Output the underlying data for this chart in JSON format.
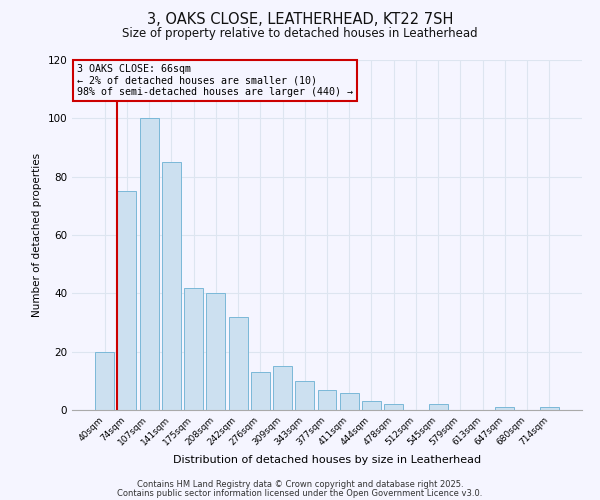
{
  "title": "3, OAKS CLOSE, LEATHERHEAD, KT22 7SH",
  "subtitle": "Size of property relative to detached houses in Leatherhead",
  "xlabel": "Distribution of detached houses by size in Leatherhead",
  "ylabel": "Number of detached properties",
  "bar_labels": [
    "40sqm",
    "74sqm",
    "107sqm",
    "141sqm",
    "175sqm",
    "208sqm",
    "242sqm",
    "276sqm",
    "309sqm",
    "343sqm",
    "377sqm",
    "411sqm",
    "444sqm",
    "478sqm",
    "512sqm",
    "545sqm",
    "579sqm",
    "613sqm",
    "647sqm",
    "680sqm",
    "714sqm"
  ],
  "bar_values": [
    20,
    75,
    100,
    85,
    42,
    40,
    32,
    13,
    15,
    10,
    7,
    6,
    3,
    2,
    0,
    2,
    0,
    0,
    1,
    0,
    1
  ],
  "bar_color": "#cce0f0",
  "bar_edgecolor": "#7ab8d8",
  "background_color": "#f5f5ff",
  "grid_color": "#dde5f0",
  "annotation_title": "3 OAKS CLOSE: 66sqm",
  "annotation_line1": "← 2% of detached houses are smaller (10)",
  "annotation_line2": "98% of semi-detached houses are larger (440) →",
  "annotation_box_edgecolor": "#cc0000",
  "vline_color": "#cc0000",
  "footer1": "Contains HM Land Registry data © Crown copyright and database right 2025.",
  "footer2": "Contains public sector information licensed under the Open Government Licence v3.0.",
  "ylim": [
    0,
    120
  ],
  "yticks": [
    0,
    20,
    40,
    60,
    80,
    100,
    120
  ]
}
